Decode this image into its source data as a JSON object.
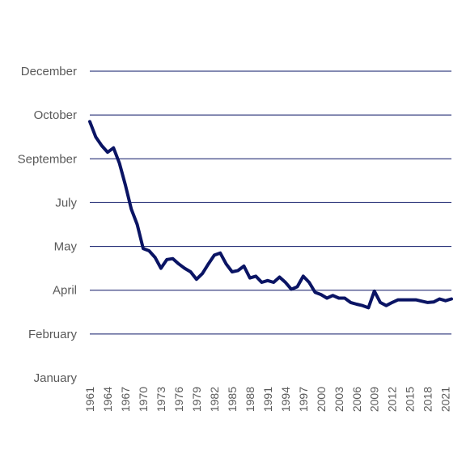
{
  "chart_data": {
    "type": "line",
    "title": "",
    "xlabel": "",
    "ylabel": "",
    "y_tick_labels": [
      "January",
      "February",
      "April",
      "May",
      "July",
      "September",
      "October",
      "December"
    ],
    "ylim": [
      0,
      7
    ],
    "x_tick_labels": [
      "1961",
      "1964",
      "1967",
      "1970",
      "1973",
      "1976",
      "1979",
      "1982",
      "1985",
      "1988",
      "1991",
      "1994",
      "1997",
      "2000",
      "2003",
      "2006",
      "2009",
      "2012",
      "2015",
      "2018",
      "2021"
    ],
    "xlim": [
      1961,
      2022
    ],
    "grid": true,
    "legend": "none",
    "series": [
      {
        "name": "",
        "color": "#0a1464",
        "x": [
          1961,
          1962,
          1963,
          1964,
          1965,
          1966,
          1967,
          1968,
          1969,
          1970,
          1971,
          1972,
          1973,
          1974,
          1975,
          1976,
          1977,
          1978,
          1979,
          1980,
          1981,
          1982,
          1983,
          1984,
          1985,
          1986,
          1987,
          1988,
          1989,
          1990,
          1991,
          1992,
          1993,
          1994,
          1995,
          1996,
          1997,
          1998,
          1999,
          2000,
          2001,
          2002,
          2003,
          2004,
          2005,
          2006,
          2007,
          2008,
          2009,
          2010,
          2011,
          2012,
          2013,
          2014,
          2015,
          2016,
          2017,
          2018,
          2019,
          2020,
          2021,
          2022
        ],
        "values": [
          5.85,
          5.5,
          5.3,
          5.15,
          5.25,
          4.9,
          4.4,
          3.85,
          3.5,
          2.95,
          2.9,
          2.75,
          2.5,
          2.7,
          2.72,
          2.6,
          2.5,
          2.42,
          2.25,
          2.38,
          2.6,
          2.8,
          2.85,
          2.6,
          2.42,
          2.45,
          2.55,
          2.28,
          2.32,
          2.18,
          2.22,
          2.18,
          2.3,
          2.18,
          2.02,
          2.08,
          2.32,
          2.18,
          1.95,
          1.9,
          1.82,
          1.88,
          1.82,
          1.82,
          1.72,
          1.68,
          1.65,
          1.6,
          1.98,
          1.72,
          1.65,
          1.72,
          1.78,
          1.78,
          1.78,
          1.78,
          1.75,
          1.72,
          1.73,
          1.8,
          1.76,
          1.8
        ]
      }
    ]
  }
}
